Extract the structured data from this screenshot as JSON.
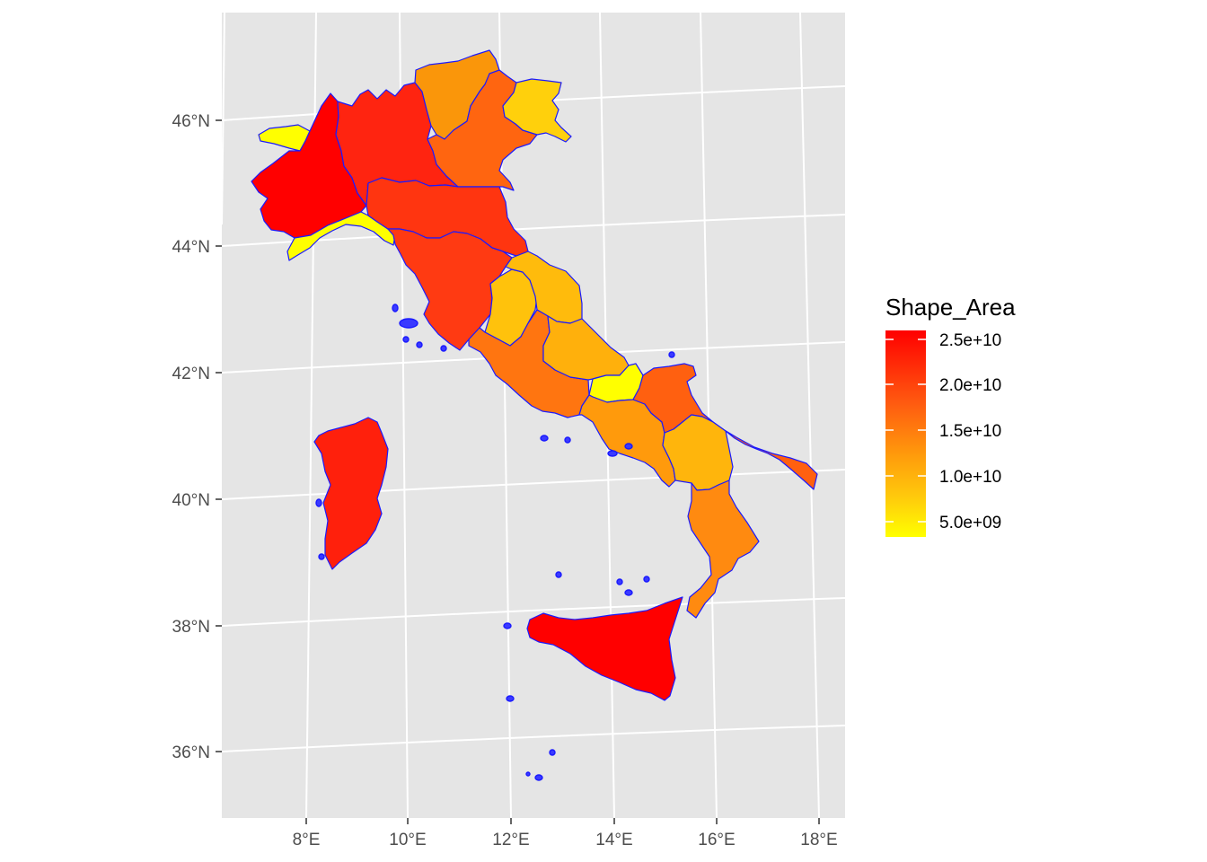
{
  "chart_data": {
    "type": "map",
    "title": "",
    "projection": "conic (graticule curved)",
    "graticule": true,
    "background": "#e5e5e5",
    "x_axis_ticks": [
      "8°E",
      "10°E",
      "12°E",
      "14°E",
      "16°E",
      "18°E"
    ],
    "y_axis_ticks": [
      "36°N",
      "38°N",
      "40°N",
      "42°N",
      "44°N",
      "46°N"
    ],
    "fill_variable": "Shape_Area",
    "legend": {
      "title": "Shape_Area",
      "placement": "right",
      "labels": [
        "2.5e+10",
        "2.0e+10",
        "1.5e+10",
        "1.0e+10",
        "5.0e+09"
      ],
      "color_low": "#ffff00",
      "color_high": "#ff0000"
    },
    "border_color": "#0000ff",
    "regions": [
      {
        "name": "Valle d'Aosta",
        "area": 3300000000.0,
        "fill": "#ffff00"
      },
      {
        "name": "Piemonte",
        "area": 25400000000.0,
        "fill": "#ff0000"
      },
      {
        "name": "Lombardia",
        "area": 23900000000.0,
        "fill": "#ff2410"
      },
      {
        "name": "Trentino-Alto Adige",
        "area": 13600000000.0,
        "fill": "#fa960a"
      },
      {
        "name": "Veneto",
        "area": 18400000000.0,
        "fill": "#ff6510"
      },
      {
        "name": "Friuli-Venezia Giulia",
        "area": 7900000000.0,
        "fill": "#ffd00c"
      },
      {
        "name": "Liguria",
        "area": 5400000000.0,
        "fill": "#ffff00"
      },
      {
        "name": "Emilia-Romagna",
        "area": 22500000000.0,
        "fill": "#ff3510"
      },
      {
        "name": "Toscana",
        "area": 23000000000.0,
        "fill": "#ff3a12"
      },
      {
        "name": "Umbria",
        "area": 8500000000.0,
        "fill": "#ffc20c"
      },
      {
        "name": "Marche",
        "area": 9400000000.0,
        "fill": "#ffbb0c"
      },
      {
        "name": "Lazio",
        "area": 17200000000.0,
        "fill": "#ff7510"
      },
      {
        "name": "Abruzzo",
        "area": 10800000000.0,
        "fill": "#ffb00c"
      },
      {
        "name": "Molise",
        "area": 4400000000.0,
        "fill": "#ffff00"
      },
      {
        "name": "Campania",
        "area": 13700000000.0,
        "fill": "#ff9a0c"
      },
      {
        "name": "Puglia",
        "area": 19500000000.0,
        "fill": "#ff6010"
      },
      {
        "name": "Basilicata",
        "area": 10000000000.0,
        "fill": "#ffb50c"
      },
      {
        "name": "Calabria",
        "area": 15100000000.0,
        "fill": "#ff8a10"
      },
      {
        "name": "Sicilia",
        "area": 25800000000.0,
        "fill": "#ff0000"
      },
      {
        "name": "Sardegna",
        "area": 24100000000.0,
        "fill": "#ff200c"
      }
    ]
  }
}
